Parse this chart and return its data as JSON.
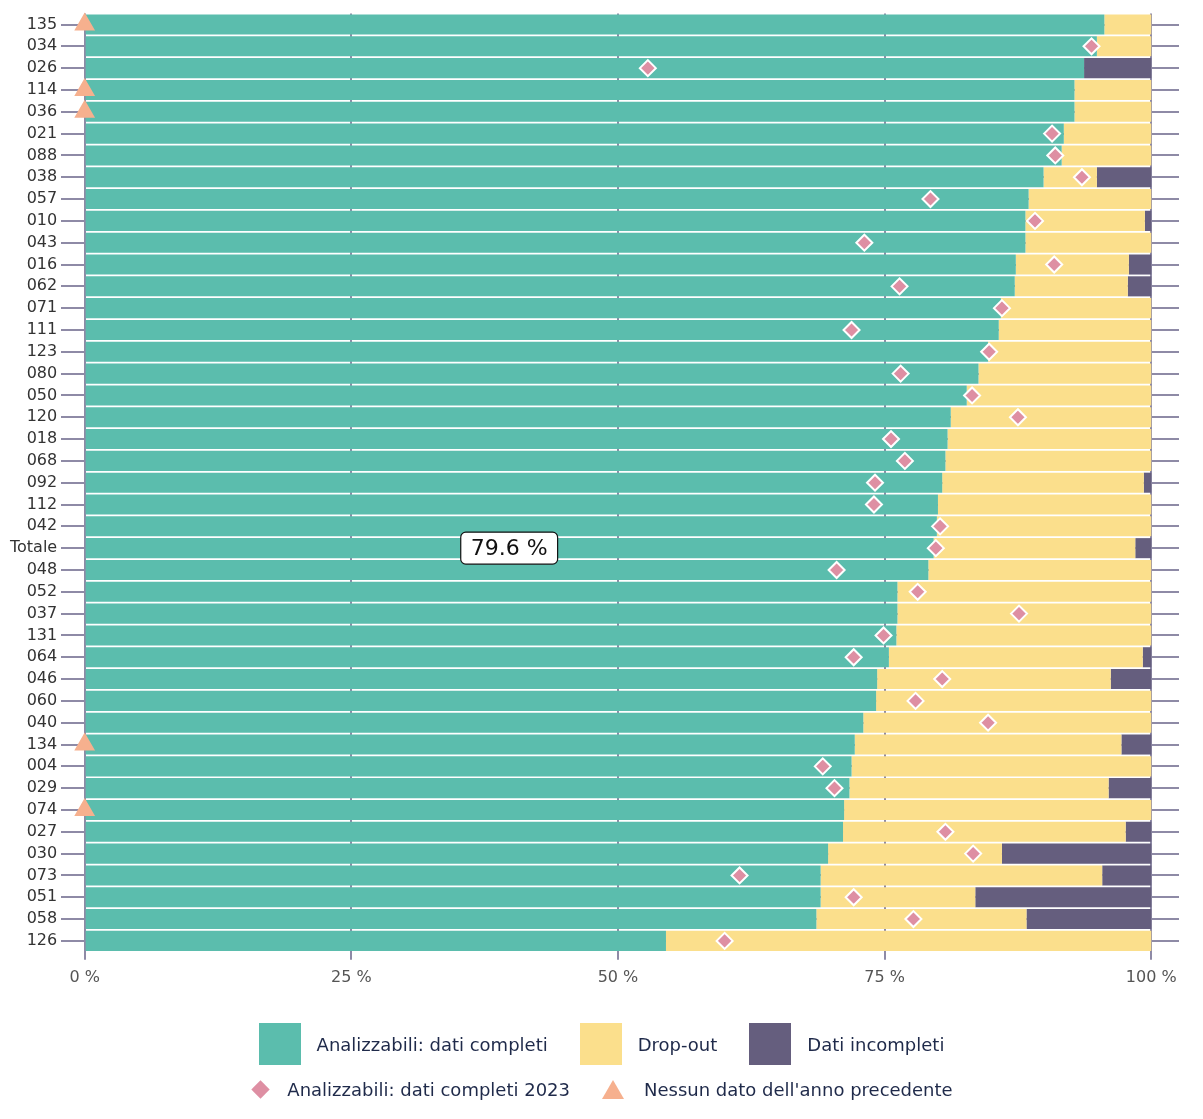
{
  "chart_data": {
    "type": "bar",
    "orientation": "horizontal",
    "stacked": true,
    "categories": [
      "135",
      "034",
      "026",
      "114",
      "036",
      "021",
      "088",
      "038",
      "057",
      "010",
      "043",
      "016",
      "062",
      "071",
      "111",
      "123",
      "080",
      "050",
      "120",
      "018",
      "068",
      "092",
      "112",
      "042",
      "Totale",
      "048",
      "052",
      "037",
      "131",
      "064",
      "046",
      "060",
      "040",
      "134",
      "004",
      "029",
      "074",
      "027",
      "030",
      "073",
      "051",
      "058",
      "126"
    ],
    "series": [
      {
        "name": "Analizzabili: dati completi",
        "color": "#5bbdad",
        "values": [
          95.6,
          94.9,
          93.7,
          92.8,
          92.8,
          91.8,
          91.6,
          89.9,
          88.5,
          88.2,
          88.2,
          87.3,
          87.2,
          85.9,
          85.7,
          84.7,
          83.8,
          82.7,
          81.2,
          80.9,
          80.7,
          80.4,
          80.0,
          79.9,
          79.6,
          79.1,
          76.2,
          76.2,
          76.1,
          75.4,
          74.3,
          74.2,
          73.0,
          72.2,
          71.9,
          71.7,
          71.2,
          71.1,
          69.7,
          69.0,
          69.0,
          68.6,
          54.5
        ]
      },
      {
        "name": "Drop-out",
        "color": "#fbdf8c",
        "values": [
          4.4,
          5.1,
          0,
          7.2,
          7.2,
          8.2,
          8.4,
          5.0,
          11.5,
          11.2,
          11.8,
          10.6,
          10.6,
          14.1,
          14.3,
          15.3,
          16.2,
          17.3,
          18.8,
          19.1,
          19.3,
          18.9,
          20.0,
          20.1,
          18.9,
          20.9,
          23.8,
          23.8,
          23.9,
          23.8,
          21.9,
          25.8,
          27.0,
          25.0,
          28.1,
          24.3,
          28.8,
          26.5,
          16.3,
          26.4,
          14.5,
          19.7,
          45.5
        ]
      },
      {
        "name": "Dati incompleti",
        "color": "#655e7e",
        "values": [
          0,
          0,
          6.3,
          0,
          0,
          0,
          0,
          5.1,
          0,
          0.6,
          0,
          2.1,
          2.2,
          0,
          0,
          0,
          0,
          0,
          0,
          0,
          0,
          0.7,
          0,
          0,
          1.5,
          0,
          0,
          0,
          0,
          0.8,
          3.8,
          0,
          0,
          2.8,
          0,
          4.0,
          0,
          2.4,
          14.0,
          4.6,
          16.5,
          11.7,
          0
        ]
      },
      {
        "name": "Analizzabili: dati completi 2023",
        "type": "scatter",
        "marker": "diamond",
        "color": "#de8fa3",
        "values": [
          null,
          94.4,
          52.8,
          null,
          null,
          90.7,
          91.0,
          93.5,
          79.3,
          89.1,
          73.1,
          90.9,
          76.4,
          86.0,
          71.9,
          84.8,
          76.5,
          83.2,
          87.5,
          75.6,
          76.9,
          74.1,
          74.0,
          80.2,
          79.8,
          70.5,
          78.1,
          87.6,
          74.9,
          72.1,
          80.4,
          77.9,
          84.7,
          null,
          69.2,
          70.3,
          null,
          80.7,
          83.3,
          61.4,
          72.1,
          77.7,
          60.0
        ]
      },
      {
        "name": "Nessun dato dell'anno precedente",
        "type": "scatter",
        "marker": "triangle",
        "color": "#f6b08e",
        "values": [
          0,
          null,
          null,
          0,
          0,
          null,
          null,
          null,
          null,
          null,
          null,
          null,
          null,
          null,
          null,
          null,
          null,
          null,
          null,
          null,
          null,
          null,
          null,
          null,
          null,
          null,
          null,
          null,
          null,
          null,
          null,
          null,
          null,
          0,
          null,
          null,
          0,
          null,
          null,
          null,
          null,
          null,
          null
        ]
      }
    ],
    "xlim": [
      -2.2,
      102.6
    ],
    "xticks": [
      {
        "value": 0,
        "label": "0 %"
      },
      {
        "value": 25,
        "label": "25 %"
      },
      {
        "value": 50,
        "label": "50 %"
      },
      {
        "value": 75,
        "label": "75 %"
      },
      {
        "value": 100,
        "label": "100 %"
      }
    ],
    "annotations": [
      {
        "text": "79.6 %",
        "x": 39.8,
        "y": "Totale"
      }
    ],
    "grid": true,
    "legend": "bottom"
  }
}
